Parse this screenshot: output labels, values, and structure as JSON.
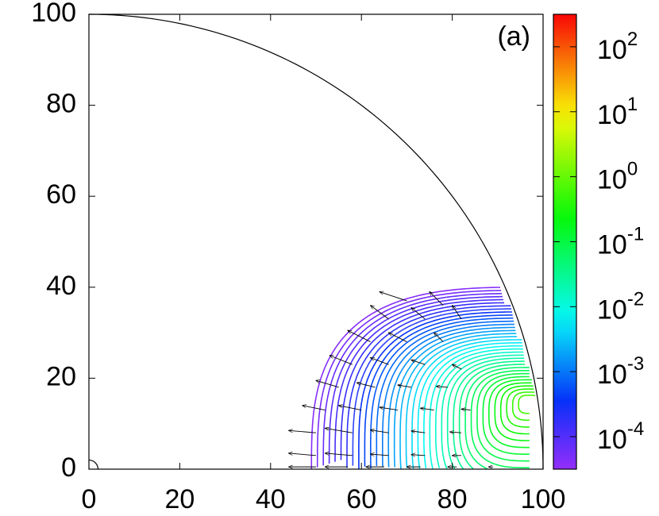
{
  "chart_data": {
    "type": "contour",
    "annotation": "(a)",
    "xlim": [
      0,
      100
    ],
    "xticks": [
      0,
      20,
      40,
      60,
      80,
      100
    ],
    "ylim": [
      0,
      100
    ],
    "yticks": [
      0,
      20,
      40,
      60,
      80,
      100
    ],
    "clim": [
      3.16e-05,
      316
    ],
    "log_color_scale": true,
    "cticks": [
      {
        "value": 0.0001,
        "label": "10",
        "exponent": "-4"
      },
      {
        "value": 0.001,
        "label": "10",
        "exponent": "-3"
      },
      {
        "value": 0.01,
        "label": "10",
        "exponent": "-2"
      },
      {
        "value": 0.1,
        "label": "10",
        "exponent": "-1"
      },
      {
        "value": 1,
        "label": "10",
        "exponent": "0"
      },
      {
        "value": 10,
        "label": "10",
        "exponent": "1"
      },
      {
        "value": 100,
        "label": "10",
        "exponent": "2"
      }
    ],
    "levels": [
      3.98e-05,
      5.25e-05,
      6.92e-05,
      9.12e-05,
      0.00012,
      0.000158,
      0.000209,
      0.000275,
      0.000363,
      0.000479,
      0.000631,
      0.000832,
      0.0011,
      0.00145,
      0.00191,
      0.00251,
      0.00331,
      0.00437,
      0.00575,
      0.00759,
      0.01,
      0.0132,
      0.0174,
      0.0229,
      0.0302,
      0.0398,
      0.0525,
      0.0692,
      0.0912,
      0.12,
      0.158,
      0.209,
      0.275,
      0.363,
      0.479,
      0.631
    ],
    "vectors": {
      "x": [
        50,
        57,
        65,
        73,
        81,
        89,
        50,
        58,
        66,
        74,
        82,
        50,
        58,
        66,
        74,
        82,
        52,
        60,
        68,
        76,
        84,
        55,
        63,
        71,
        79,
        58,
        66,
        74,
        82,
        62,
        70,
        78,
        66,
        74,
        82,
        70,
        78
      ],
      "y": [
        0.5,
        0.5,
        0.5,
        0.5,
        0.5,
        0.5,
        3,
        3,
        3,
        3,
        3,
        8,
        8,
        8,
        8,
        8,
        13,
        13,
        13,
        13,
        13,
        18,
        18,
        18,
        18,
        23,
        23,
        23,
        22,
        28,
        28,
        28,
        33,
        33,
        33,
        37,
        36
      ],
      "dx": [
        -6,
        -5,
        -4,
        -3,
        -2,
        -1,
        -6,
        -6,
        -4,
        -3,
        -2,
        -6,
        -6,
        -4,
        -3,
        -2.5,
        -5,
        -5,
        -4,
        -3,
        -2,
        -5,
        -4,
        -3,
        -2.5,
        -5,
        -4,
        -3,
        -2,
        -5,
        -4,
        -2,
        -4,
        -3,
        -2,
        -6,
        -3
      ],
      "dy": [
        0,
        0,
        0,
        0,
        0,
        0,
        0.5,
        0.5,
        0.3,
        0.2,
        0,
        0.5,
        1,
        0.6,
        0.4,
        0.2,
        1,
        1,
        0.6,
        0.4,
        0.2,
        1.5,
        1,
        0.5,
        0.2,
        2,
        1.5,
        1,
        1,
        2.5,
        2,
        2,
        3,
        2.5,
        3,
        2,
        3
      ]
    }
  }
}
